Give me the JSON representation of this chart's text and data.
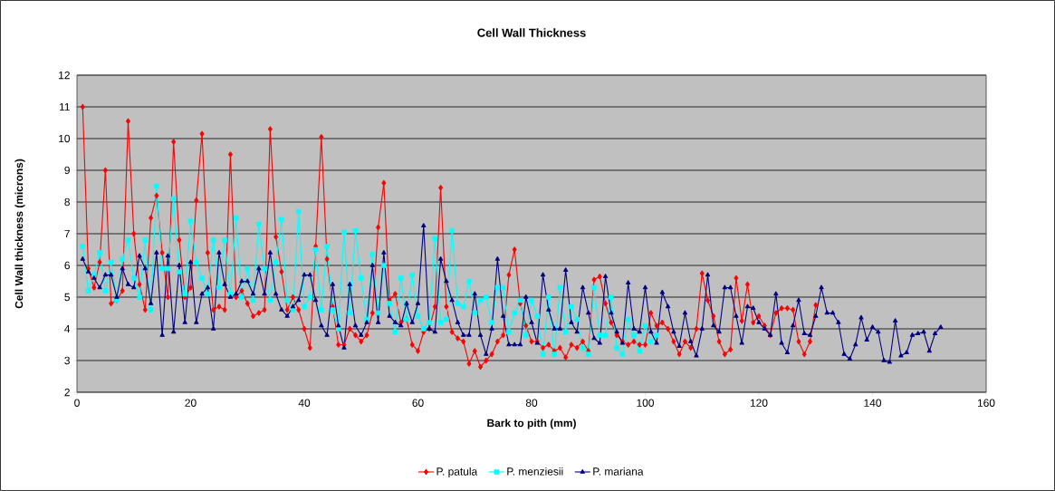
{
  "chart_data": {
    "type": "line",
    "title": "Cell Wall Thickness",
    "xlabel": "Bark to pith (mm)",
    "ylabel": "Cell Wall thickness (microns)",
    "xlim": [
      0,
      160
    ],
    "xticks": [
      0,
      20,
      40,
      60,
      80,
      100,
      120,
      140,
      160
    ],
    "ylim": [
      2,
      12
    ],
    "yticks": [
      2,
      3,
      4,
      5,
      6,
      7,
      8,
      9,
      10,
      11,
      12
    ],
    "grid": "y",
    "legend": "bottom",
    "x": [
      1,
      2,
      3,
      4,
      5,
      6,
      7,
      8,
      9,
      10,
      11,
      12,
      13,
      14,
      15,
      16,
      17,
      18,
      19,
      20,
      21,
      22,
      23,
      24,
      25,
      26,
      27,
      28,
      29,
      30,
      31,
      32,
      33,
      34,
      35,
      36,
      37,
      38,
      39,
      40,
      41,
      42,
      43,
      44,
      45,
      46,
      47,
      48,
      49,
      50,
      51,
      52,
      53,
      54,
      55,
      56,
      57,
      58,
      59,
      60,
      61,
      62,
      63,
      64,
      65,
      66,
      67,
      68,
      69,
      70,
      71,
      72,
      73,
      74,
      75,
      76,
      77,
      78,
      79,
      80,
      81,
      82,
      83,
      84,
      85,
      86,
      87,
      88,
      89,
      90,
      91,
      92,
      93,
      94,
      95,
      96,
      97,
      98,
      99,
      100,
      101,
      102,
      103,
      104,
      105,
      106,
      107,
      108,
      109,
      110,
      111,
      112,
      113,
      114,
      115,
      116,
      117,
      118,
      119,
      120,
      121,
      122,
      123,
      124,
      125,
      126,
      127,
      128,
      129,
      130,
      131,
      132,
      133,
      134,
      135,
      136,
      137,
      138,
      139,
      140,
      141,
      142,
      143,
      144,
      145,
      146,
      147,
      148,
      149,
      150,
      151,
      152
    ],
    "series": [
      {
        "name": "P. patula",
        "color": "#ff0000",
        "marker": "diamond",
        "values": [
          11.0,
          5.9,
          5.3,
          6.1,
          9.0,
          4.8,
          4.9,
          5.2,
          10.55,
          7.0,
          5.4,
          4.6,
          7.5,
          8.2,
          6.4,
          5.0,
          9.9,
          6.8,
          5.0,
          5.3,
          8.05,
          10.15,
          6.4,
          4.6,
          4.7,
          4.6,
          9.5,
          5.0,
          5.2,
          4.8,
          4.4,
          4.5,
          4.6,
          10.3,
          6.9,
          5.8,
          4.6,
          5.0,
          4.6,
          4.0,
          3.4,
          6.6,
          10.05,
          6.2,
          4.7,
          3.5,
          3.5,
          4.0,
          3.8,
          3.6,
          3.8,
          4.5,
          7.2,
          8.6,
          4.9,
          5.1,
          4.2,
          4.3,
          3.5,
          3.3,
          3.9,
          4.0,
          4.7,
          8.45,
          4.7,
          3.9,
          3.7,
          3.6,
          2.9,
          3.3,
          2.8,
          3.0,
          3.2,
          3.6,
          3.8,
          5.7,
          6.5,
          4.8,
          4.1,
          3.6,
          3.6,
          3.4,
          3.5,
          3.3,
          3.4,
          3.1,
          3.5,
          3.4,
          3.6,
          3.3,
          5.55,
          5.65,
          4.8,
          4.2,
          3.8,
          3.6,
          3.5,
          3.6,
          3.5,
          3.5,
          4.5,
          4.1,
          4.2,
          4.0,
          3.6,
          3.2,
          3.6,
          3.4,
          4.0,
          5.75,
          4.9,
          4.4,
          3.6,
          3.2,
          3.35,
          5.6,
          4.25,
          5.4,
          4.2,
          4.4,
          4.1,
          3.8,
          4.5,
          4.65,
          4.65,
          4.6,
          3.6,
          3.2,
          3.6,
          4.75,
          null,
          null,
          null,
          null,
          null,
          null,
          null,
          null,
          null,
          null,
          null,
          null,
          null,
          null,
          null,
          null,
          null,
          null,
          null,
          null,
          null,
          null
        ]
      },
      {
        "name": "P. menziesii",
        "color": "#00ffff",
        "marker": "square",
        "values": [
          6.6,
          5.2,
          5.7,
          6.4,
          5.2,
          6.1,
          4.9,
          6.2,
          6.8,
          5.6,
          5.0,
          6.8,
          4.6,
          8.5,
          5.9,
          5.9,
          8.1,
          5.8,
          5.1,
          7.4,
          6.1,
          5.6,
          5.1,
          6.8,
          5.3,
          6.8,
          5.1,
          7.5,
          5.0,
          5.9,
          4.9,
          7.3,
          5.9,
          4.9,
          6.1,
          7.45,
          4.9,
          4.6,
          7.7,
          4.7,
          5.0,
          6.5,
          4.6,
          6.6,
          4.6,
          4.0,
          7.05,
          4.5,
          7.1,
          5.6,
          4.3,
          6.35,
          4.5,
          6.0,
          4.8,
          3.9,
          5.6,
          4.3,
          5.7,
          4.4,
          4.0,
          4.2,
          6.85,
          4.2,
          4.3,
          7.1,
          4.8,
          4.7,
          5.5,
          4.5,
          4.9,
          5.0,
          4.2,
          5.3,
          5.3,
          3.9,
          4.5,
          4.9,
          3.8,
          4.9,
          4.4,
          3.2,
          5.0,
          3.2,
          5.3,
          3.9,
          4.7,
          4.3,
          3.4,
          3.2,
          5.3,
          3.8,
          3.8,
          5.0,
          3.4,
          3.2,
          4.3,
          3.8,
          3.3,
          4.1,
          3.6,
          3.8,
          null,
          null,
          null,
          null,
          null,
          null,
          null,
          null,
          null,
          null,
          null,
          null,
          null,
          null,
          null,
          null,
          null,
          null,
          null,
          null,
          null,
          null,
          null,
          null,
          null,
          null,
          null,
          null,
          null,
          null,
          null,
          null,
          null,
          null,
          null,
          null,
          null,
          null,
          null,
          null,
          null,
          null,
          null,
          null,
          null,
          null,
          null,
          null,
          null,
          null
        ]
      },
      {
        "name": "P. mariana",
        "color": "#000080",
        "marker": "triangle",
        "values": [
          6.2,
          5.8,
          5.6,
          5.3,
          5.7,
          5.7,
          5.0,
          5.9,
          5.4,
          5.3,
          6.3,
          5.9,
          4.8,
          6.4,
          3.8,
          6.3,
          3.9,
          6.0,
          4.2,
          6.1,
          4.2,
          5.1,
          5.3,
          4.0,
          6.4,
          5.4,
          5.0,
          5.1,
          5.5,
          5.5,
          5.1,
          5.9,
          5.1,
          6.4,
          5.1,
          4.6,
          4.4,
          4.7,
          4.9,
          5.7,
          5.7,
          4.9,
          4.1,
          3.8,
          5.4,
          4.1,
          3.4,
          5.4,
          4.1,
          3.8,
          4.2,
          6.0,
          4.2,
          6.4,
          4.4,
          4.2,
          4.1,
          4.8,
          4.2,
          4.8,
          7.25,
          4.0,
          3.9,
          6.2,
          5.5,
          4.9,
          4.2,
          3.8,
          3.8,
          5.1,
          3.8,
          3.2,
          4.0,
          6.2,
          4.4,
          3.5,
          3.5,
          3.5,
          5.0,
          4.2,
          3.55,
          5.7,
          4.6,
          4.0,
          4.0,
          5.85,
          4.2,
          3.9,
          5.3,
          4.5,
          3.7,
          3.55,
          5.65,
          4.5,
          3.9,
          3.55,
          5.45,
          4.0,
          3.9,
          5.3,
          3.9,
          3.55,
          5.15,
          4.7,
          3.9,
          3.45,
          4.5,
          3.6,
          3.15,
          4.0,
          5.7,
          4.1,
          3.9,
          5.3,
          5.3,
          4.4,
          3.55,
          4.7,
          4.65,
          4.2,
          4.0,
          3.8,
          5.1,
          3.55,
          3.25,
          4.1,
          4.9,
          3.85,
          3.8,
          4.4,
          5.3,
          4.5,
          4.5,
          4.2,
          3.2,
          3.05,
          3.5,
          4.35,
          3.65,
          4.05,
          3.9,
          3.0,
          2.95,
          4.25,
          3.15,
          3.25,
          3.8,
          3.85,
          3.9,
          3.3,
          3.85,
          4.05
        ]
      }
    ]
  }
}
